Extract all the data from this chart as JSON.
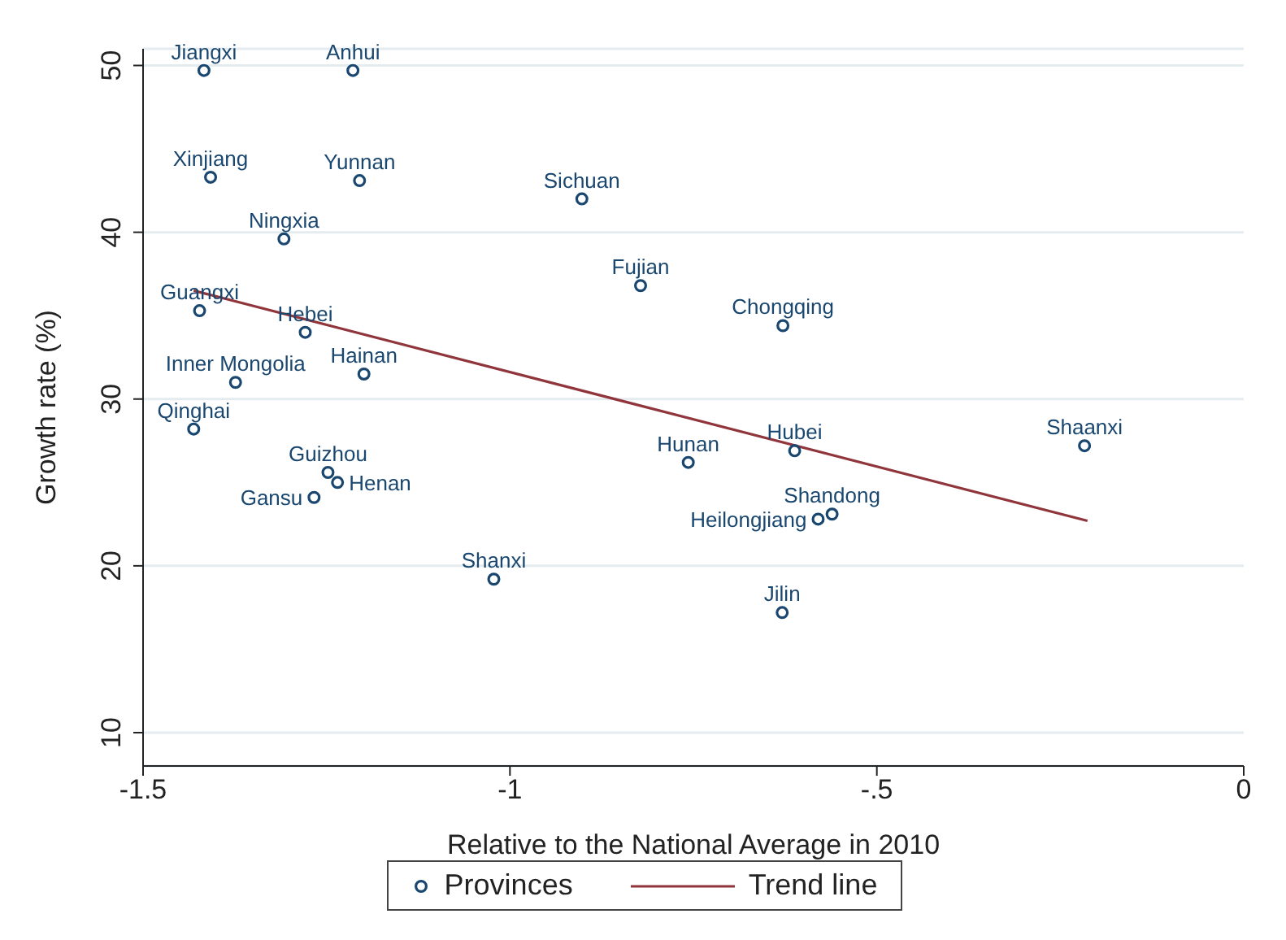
{
  "chart_data": {
    "type": "scatter",
    "xlabel": "Relative to the National Average in 2010",
    "ylabel": "Growth rate (%)",
    "xlim": [
      -1.5,
      0
    ],
    "xticks": [
      -1.5,
      -1,
      {
        "value": -0.5,
        "label": "-.5"
      },
      0
    ],
    "ylim": [
      8,
      51
    ],
    "yticks": [
      10,
      20,
      30,
      40,
      50
    ],
    "grid": "y",
    "legend": "bottom",
    "marker": "circle",
    "series": [
      {
        "name": "Provinces",
        "type": "scatter",
        "color": "#1a476f",
        "x": [
          -1.417,
          -1.214,
          -1.408,
          -1.205,
          -0.902,
          -1.308,
          -0.822,
          -1.423,
          -1.279,
          -1.199,
          -1.374,
          -1.431,
          -1.248,
          -1.235,
          -1.267,
          -0.628,
          -0.757,
          -0.612,
          -0.217,
          -0.58,
          -0.561,
          -0.629,
          -1.022
        ],
        "values": [
          49.7,
          49.7,
          43.3,
          43.1,
          42.0,
          39.6,
          36.8,
          35.3,
          34.0,
          31.5,
          31.0,
          28.2,
          25.6,
          25.0,
          24.1,
          34.4,
          26.2,
          26.9,
          27.2,
          22.8,
          23.1,
          17.2,
          19.2
        ]
      },
      {
        "name": "Trend line",
        "type": "line",
        "color": "#90353b",
        "marker": "none",
        "x": [
          -1.431,
          -0.213
        ],
        "values": [
          36.5,
          22.7
        ]
      }
    ],
    "annotations": [
      {
        "text": "Jiangxi",
        "x": -1.417,
        "y": 49.7
      },
      {
        "text": "Anhui",
        "x": -1.214,
        "y": 49.7
      },
      {
        "text": "Xinjiang",
        "x": -1.408,
        "y": 43.3
      },
      {
        "text": "Yunnan",
        "x": -1.205,
        "y": 43.1
      },
      {
        "text": "Sichuan",
        "x": -0.902,
        "y": 42.0
      },
      {
        "text": "Ningxia",
        "x": -1.308,
        "y": 39.6
      },
      {
        "text": "Fujian",
        "x": -0.822,
        "y": 36.8
      },
      {
        "text": "Guangxi",
        "x": -1.423,
        "y": 35.3
      },
      {
        "text": "Hebei",
        "x": -1.279,
        "y": 34.0
      },
      {
        "text": "Hainan",
        "x": -1.199,
        "y": 31.5
      },
      {
        "text": "Inner Mongolia",
        "x": -1.374,
        "y": 31.0
      },
      {
        "text": "Qinghai",
        "x": -1.431,
        "y": 28.2
      },
      {
        "text": "Guizhou",
        "x": -1.248,
        "y": 25.6
      },
      {
        "text": "Henan",
        "x": -1.235,
        "y": 25.0
      },
      {
        "text": "Gansu",
        "x": -1.267,
        "y": 24.1
      },
      {
        "text": "Chongqing",
        "x": -0.628,
        "y": 34.4
      },
      {
        "text": "Hunan",
        "x": -0.757,
        "y": 26.2
      },
      {
        "text": "Hubei",
        "x": -0.612,
        "y": 26.9
      },
      {
        "text": "Shaanxi",
        "x": -0.217,
        "y": 27.2
      },
      {
        "text": "Heilongjiang",
        "x": -0.58,
        "y": 22.8
      },
      {
        "text": "Shandong",
        "x": -0.561,
        "y": 23.1
      },
      {
        "text": "Jilin",
        "x": -0.629,
        "y": 17.2
      },
      {
        "text": "Shanxi",
        "x": -1.022,
        "y": 19.2
      }
    ]
  }
}
